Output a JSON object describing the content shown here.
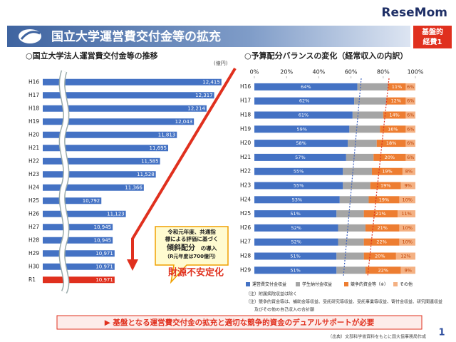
{
  "header": {
    "title": "国立大学運営費交付金等の拡充",
    "badge": [
      "基盤的",
      "経費1"
    ],
    "logo": "ReseMom"
  },
  "chart_data": [
    {
      "type": "bar",
      "orientation": "horizontal",
      "title": "○国立大学法人運営費交付金等の推移",
      "unit": "(億円)",
      "categories": [
        "H16",
        "H17",
        "H18",
        "H19",
        "H20",
        "H21",
        "H22",
        "H23",
        "H24",
        "H25",
        "H26",
        "H27",
        "H28",
        "H29",
        "H30",
        "R1"
      ],
      "values": [
        12415,
        12317,
        12214,
        12043,
        11813,
        11695,
        11585,
        11528,
        11366,
        10792,
        11123,
        10945,
        10945,
        10971,
        10971,
        10971
      ],
      "value_labels": [
        "12,415",
        "12,317",
        "12,214",
        "12,043",
        "11,813",
        "11,695",
        "11,585",
        "11,528",
        "11,366",
        "10,792",
        "11,123",
        "10,945",
        "10,945",
        "10,971",
        "10,971",
        "10,971"
      ],
      "colors": [
        "#4472c4",
        "#4472c4",
        "#4472c4",
        "#4472c4",
        "#4472c4",
        "#4472c4",
        "#4472c4",
        "#4472c4",
        "#4472c4",
        "#4472c4",
        "#4472c4",
        "#4472c4",
        "#4472c4",
        "#4472c4",
        "#4472c4",
        "#e0301e"
      ],
      "xlim": [
        10000,
        12600
      ],
      "axis_break": true
    },
    {
      "type": "stacked_bar",
      "orientation": "horizontal",
      "title": "○予算配分バランスの変化（経常収入の内訳）",
      "categories": [
        "H16",
        "H17",
        "H18",
        "H19",
        "H20",
        "H21",
        "H22",
        "H23",
        "H24",
        "H25",
        "H26",
        "H27",
        "H28",
        "H29"
      ],
      "series": [
        {
          "name": "運営費交付金収益",
          "color": "#4472c4",
          "values": [
            64,
            62,
            61,
            59,
            58,
            57,
            55,
            55,
            53,
            51,
            52,
            52,
            51,
            51
          ],
          "value_labels": [
            "64%",
            "62%",
            "61%",
            "59%",
            "58%",
            "57%",
            "55%",
            "55%",
            "53%",
            "51%",
            "52%",
            "52%",
            "51%",
            "51%"
          ]
        },
        {
          "name": "学生納付金収益",
          "color": "#a5a5a5",
          "values": [
            19,
            20,
            19,
            19,
            18,
            17,
            18,
            17,
            18,
            17,
            17,
            16,
            17,
            18
          ]
        },
        {
          "name": "競争的資金等（※）",
          "color": "#ed7d31",
          "values": [
            11,
            12,
            14,
            16,
            18,
            20,
            19,
            19,
            19,
            21,
            21,
            22,
            20,
            22
          ],
          "value_labels": [
            "11%",
            "12%",
            "14%",
            "16%",
            "18%",
            "20%",
            "19%",
            "19%",
            "19%",
            "21%",
            "21%",
            "22%",
            "20%",
            "22%"
          ]
        },
        {
          "name": "その他",
          "color": "#f4b183",
          "values": [
            6,
            6,
            6,
            6,
            6,
            6,
            8,
            9,
            10,
            11,
            10,
            10,
            12,
            9
          ],
          "value_labels": [
            "6%",
            "6%",
            "6%",
            "6%",
            "6%",
            "6%",
            "8%",
            "9%",
            "10%",
            "11%",
            "10%",
            "10%",
            "12%",
            "9%"
          ]
        }
      ],
      "xlim": [
        0,
        100
      ],
      "xticks": [
        {
          "value": 0,
          "label": "0%"
        },
        {
          "value": 20,
          "label": "20%"
        },
        {
          "value": 40,
          "label": "40%"
        },
        {
          "value": 60,
          "label": "60%"
        },
        {
          "value": 80,
          "label": "80%"
        },
        {
          "value": 100,
          "label": "100%"
        }
      ],
      "notes": [
        "（注）附属病院収益は除く",
        "（注）競争的資金等は、補助金等収益、受託研究等収益、受託事業等収益、寄付金収益、研究関連収益",
        "及びその他の自己収入の合計額"
      ]
    }
  ],
  "callout": {
    "lines": [
      "令和元年度、共通指",
      "標による評価に基づく"
    ],
    "highlight": "傾斜配分",
    "highlight_suffix": "の導入",
    "note": "（R元年度は700億円）",
    "emphasis": "財源不安定化"
  },
  "footer": {
    "message": "▶ 基盤となる運営費交付金の拡充と適切な競争的資金のデュアルサポートが必要",
    "source": "（出典）文部科学省資料をもとに国大協事務局作成",
    "page": "1"
  }
}
